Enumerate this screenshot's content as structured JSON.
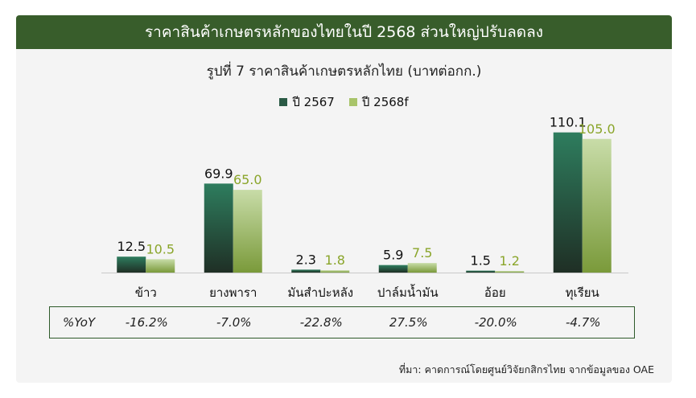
{
  "header": {
    "title": "ราคาสินค้าเกษตรหลักของไทยในปี 2568 ส่วนใหญ่ปรับลดลง"
  },
  "chart_data": {
    "type": "bar",
    "title": "รูปที่ 7 ราคาสินค้าเกษตรหลักไทย (บาทต่อกก.)",
    "categories": [
      "ข้าว",
      "ยางพารา",
      "มันสำปะหลัง",
      "ปาล์มน้ำมัน",
      "อ้อย",
      "ทุเรียน"
    ],
    "series": [
      {
        "name": "ปี 2567",
        "values": [
          12.5,
          69.9,
          2.3,
          5.9,
          1.5,
          110.1
        ],
        "value_labels": [
          "12.5",
          "69.9",
          "2.3",
          "5.9",
          "1.5",
          "110.1"
        ]
      },
      {
        "name": "ปี 2568f",
        "values": [
          10.5,
          65.0,
          1.8,
          7.5,
          1.2,
          105.0
        ],
        "value_labels": [
          "10.5",
          "65.0",
          "1.8",
          "7.5",
          "1.2",
          "105.0"
        ]
      }
    ],
    "ylim": [
      0,
      120
    ],
    "legend_position": "top-center",
    "grid": false
  },
  "yoy": {
    "label": "%YoY",
    "values": [
      "-16.2%",
      "-7.0%",
      "-22.8%",
      "27.5%",
      "-20.0%",
      "-4.7%"
    ]
  },
  "source": {
    "text": "ที่มา: คาดการณ์โดยศูนย์วิจัยกสิกรไทย จากข้อมูลของ OAE"
  },
  "colors": {
    "header_bg": "#385d2b",
    "series1_top": "#2e7d5e",
    "series1_bottom": "#1f2f25",
    "series2_top": "#c8dca8",
    "series2_bottom": "#7a9a3a",
    "series2_label": "#8aa52a",
    "box_border": "#2e5a2a"
  }
}
